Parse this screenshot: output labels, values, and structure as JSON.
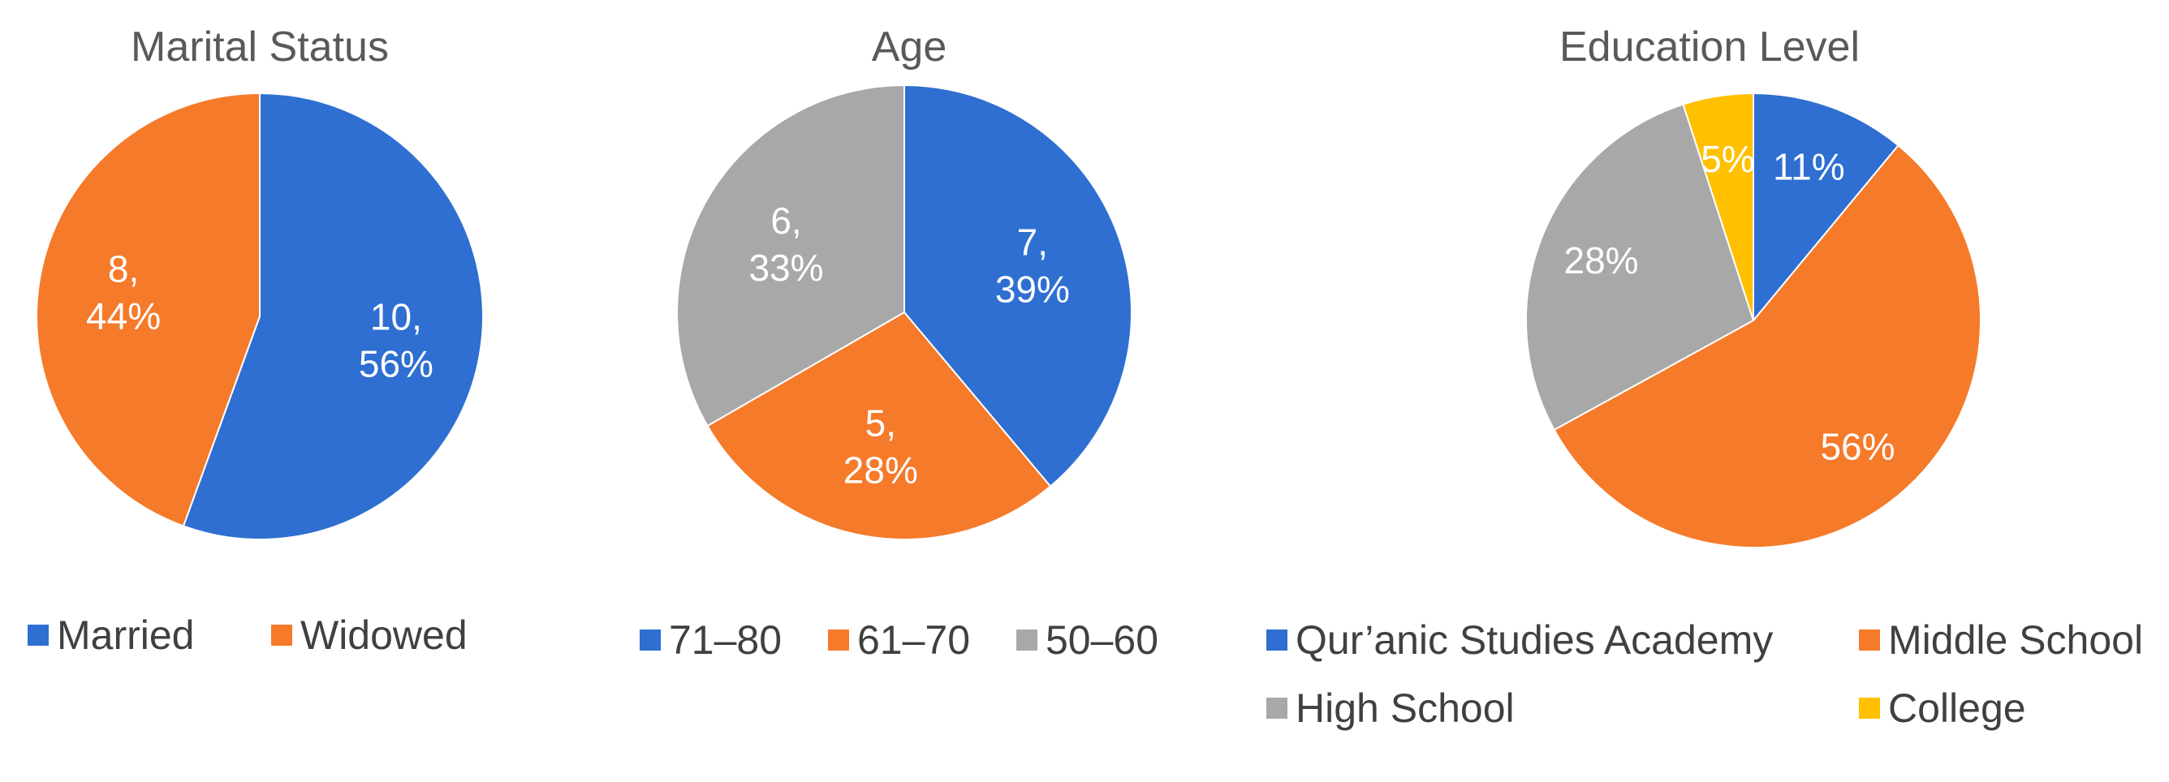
{
  "chart_data": [
    {
      "type": "pie",
      "title": "Marital Status",
      "slices": [
        {
          "name": "Married",
          "value": 10,
          "label_lines": [
            "10,",
            "56%"
          ],
          "color": "#2E6FD1"
        },
        {
          "name": "Widowed",
          "value": 8,
          "label_lines": [
            "8,",
            "44%"
          ],
          "color": "#F57A2A"
        }
      ],
      "legend": "bottom"
    },
    {
      "type": "pie",
      "title": "Age",
      "slices": [
        {
          "name": "71–80",
          "value": 7,
          "label_lines": [
            "7,",
            "39%"
          ],
          "color": "#2E6FD1"
        },
        {
          "name": "61–70",
          "value": 5,
          "label_lines": [
            "5,",
            "28%"
          ],
          "color": "#F57A2A"
        },
        {
          "name": "50–60",
          "value": 6,
          "label_lines": [
            "6,",
            "33%"
          ],
          "color": "#A8A8A8"
        }
      ],
      "legend": "bottom"
    },
    {
      "type": "pie",
      "title": "Education Level",
      "slices": [
        {
          "name": "Qur’anic Studies Academy",
          "value": 11,
          "label_lines": [
            "11%"
          ],
          "color": "#2E6FD1"
        },
        {
          "name": "Middle School",
          "value": 56,
          "label_lines": [
            "56%"
          ],
          "color": "#F57A2A"
        },
        {
          "name": "High School",
          "value": 28,
          "label_lines": [
            "28%"
          ],
          "color": "#A8A8A8"
        },
        {
          "name": "College",
          "value": 5,
          "label_lines": [
            "5%"
          ],
          "color": "#FFC000"
        }
      ],
      "legend": "bottom"
    }
  ]
}
